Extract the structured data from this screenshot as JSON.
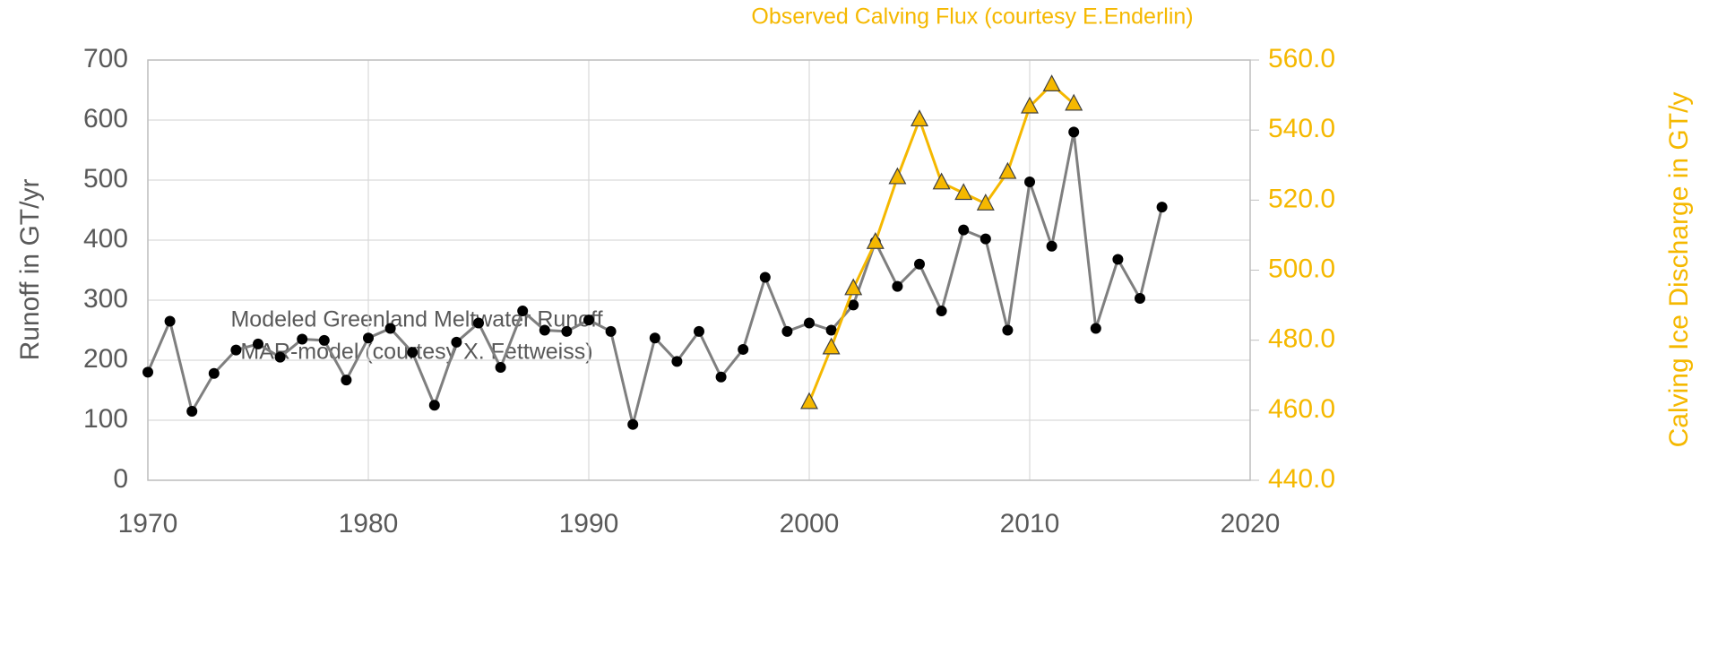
{
  "chart_data": {
    "type": "line",
    "annotations": [
      "Modeled Greenland Meltwater Runoff",
      "MAR-model (courtesy X. Fettweiss)",
      "Observed Calving Flux (courtesy E.Enderlin)"
    ],
    "y_label": "Runoff in GT/yr",
    "y2_label": "Calving Ice Discharge in GT/y",
    "xlim": [
      1970,
      2020
    ],
    "xticks": [
      1970,
      1980,
      1990,
      2000,
      2010,
      2020
    ],
    "ylim": [
      0,
      700
    ],
    "yticks": [
      0,
      100,
      200,
      300,
      400,
      500,
      600,
      700
    ],
    "y2lim": [
      440,
      560
    ],
    "y2ticks": [
      {
        "value": 440,
        "label": "440.0"
      },
      {
        "value": 460,
        "label": "460.0"
      },
      {
        "value": 480,
        "label": "480.0"
      },
      {
        "value": 500,
        "label": "500.0"
      },
      {
        "value": 520,
        "label": "520.0"
      },
      {
        "value": 540,
        "label": "540.0"
      },
      {
        "value": 560,
        "label": "560.0"
      }
    ],
    "grid": true,
    "series": [
      {
        "color": "#7f7f7f",
        "marker_color": "#000000",
        "marker": "circle",
        "x": [
          1970,
          1971,
          1972,
          1973,
          1974,
          1975,
          1976,
          1977,
          1978,
          1979,
          1980,
          1981,
          1982,
          1983,
          1984,
          1985,
          1986,
          1987,
          1988,
          1989,
          1990,
          1991,
          1992,
          1993,
          1994,
          1995,
          1996,
          1997,
          1998,
          1999,
          2000,
          2001,
          2002,
          2003,
          2004,
          2005,
          2006,
          2007,
          2008,
          2009,
          2010,
          2011,
          2012,
          2013,
          2014,
          2015,
          2016
        ],
        "values": [
          180,
          265,
          115,
          178,
          217,
          227,
          205,
          235,
          233,
          167,
          237,
          253,
          213,
          125,
          230,
          262,
          188,
          282,
          250,
          248,
          267,
          248,
          93,
          237,
          198,
          248,
          172,
          218,
          338,
          248,
          262,
          250,
          292,
          397,
          323,
          360,
          282,
          417,
          402,
          250,
          497,
          390,
          580,
          253,
          368,
          303,
          455
        ]
      },
      {
        "color": "#f5b800",
        "marker_color": "#f5b800",
        "marker": "triangle",
        "axis": "y2",
        "x": [
          2000,
          2001,
          2002,
          2003,
          2004,
          2005,
          2006,
          2007,
          2008,
          2009,
          2010,
          2011,
          2012
        ],
        "values": [
          462.3,
          477.9,
          494.8,
          508,
          526.5,
          543,
          525,
          522,
          519,
          528,
          546.7,
          553,
          547.5
        ]
      }
    ]
  }
}
